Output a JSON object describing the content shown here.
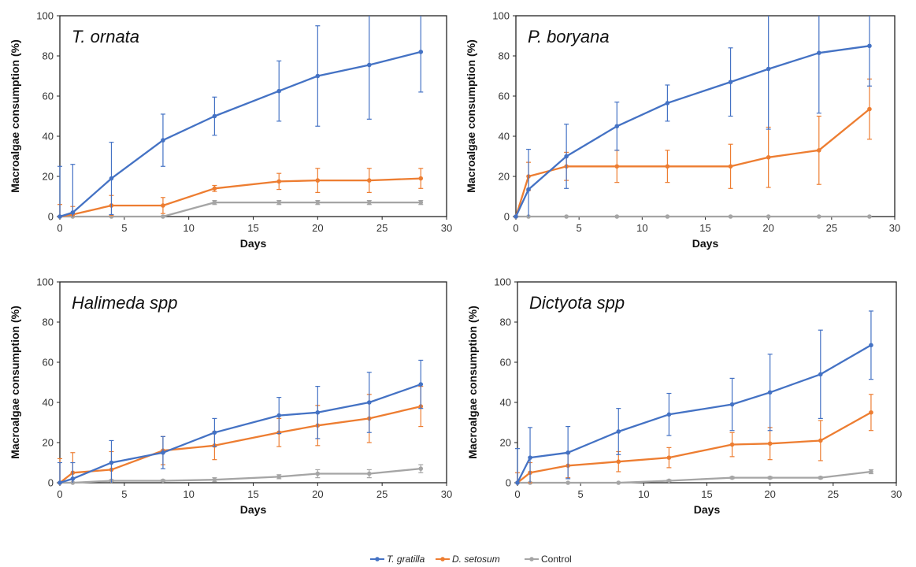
{
  "legend": {
    "placement": "bottom-center",
    "entries": [
      {
        "label": "T. gratilla",
        "color": "#4472C4",
        "italic": true
      },
      {
        "label": "D. setosum",
        "color": "#ED7D31",
        "italic": true
      },
      {
        "label": "Control",
        "color": "#A5A5A5",
        "italic": false
      }
    ]
  },
  "chart_data": [
    {
      "type": "line",
      "title": "T. ornata",
      "xlabel": "Days",
      "ylabel": "Macroalgae consumption (%)",
      "xlim": [
        0,
        30
      ],
      "ylim": [
        0,
        100
      ],
      "xticks": [
        0,
        5,
        10,
        15,
        20,
        25,
        30
      ],
      "yticks": [
        0,
        20,
        40,
        60,
        80,
        100
      ],
      "grid": false,
      "x": [
        0,
        1,
        4,
        8,
        12,
        17,
        20,
        24,
        28
      ],
      "series": [
        {
          "name": "T. gratilla",
          "color": "#4472C4",
          "values": [
            0,
            2,
            19,
            38,
            50,
            62.5,
            70,
            75.5,
            82
          ],
          "errors": [
            25,
            24,
            18,
            13,
            9.5,
            15,
            25,
            27,
            20
          ]
        },
        {
          "name": "D. setosum",
          "color": "#ED7D31",
          "values": [
            0,
            1,
            5.5,
            5.5,
            14,
            17.5,
            18,
            18,
            19
          ],
          "errors": [
            6,
            4,
            5,
            4,
            1.5,
            4,
            6,
            6,
            5
          ]
        },
        {
          "name": "Control",
          "color": "#A5A5A5",
          "values": [
            0,
            0,
            0,
            0,
            7,
            7,
            7,
            7,
            7
          ],
          "errors": [
            0,
            0,
            0,
            0,
            1,
            1,
            1,
            1,
            1
          ]
        }
      ]
    },
    {
      "type": "line",
      "title": "P. boryana",
      "xlabel": "Days",
      "ylabel": "Macroalgae consumption (%)",
      "xlim": [
        0,
        30
      ],
      "ylim": [
        0,
        100
      ],
      "xticks": [
        0,
        5,
        10,
        15,
        20,
        25,
        30
      ],
      "yticks": [
        0,
        20,
        40,
        60,
        80,
        100
      ],
      "grid": false,
      "x": [
        0,
        1,
        4,
        8,
        12,
        17,
        20,
        24,
        28
      ],
      "series": [
        {
          "name": "T. gratilla",
          "color": "#4472C4",
          "values": [
            0,
            13.5,
            30,
            45,
            56.5,
            67,
            73.5,
            81.5,
            85
          ],
          "errors": [
            0,
            20,
            16,
            12,
            9,
            17,
            30,
            30,
            20
          ]
        },
        {
          "name": "D. setosum",
          "color": "#ED7D31",
          "values": [
            0,
            20,
            25,
            25,
            25,
            25,
            29.5,
            33,
            53.5
          ],
          "errors": [
            0,
            7,
            7,
            8,
            8,
            11,
            15,
            17,
            15
          ]
        },
        {
          "name": "Control",
          "color": "#A5A5A5",
          "values": [
            0,
            0,
            0,
            0,
            0,
            0,
            0,
            0,
            0
          ],
          "errors": [
            0,
            0,
            0,
            0,
            0,
            0,
            0,
            0,
            0
          ]
        }
      ]
    },
    {
      "type": "line",
      "title": "Halimeda spp",
      "xlabel": "Days",
      "ylabel": "Macroalgae consumption (%)",
      "xlim": [
        0,
        30
      ],
      "ylim": [
        0,
        100
      ],
      "xticks": [
        0,
        5,
        10,
        15,
        20,
        25,
        30
      ],
      "yticks": [
        0,
        20,
        40,
        60,
        80,
        100
      ],
      "grid": false,
      "x": [
        0,
        1,
        4,
        8,
        12,
        17,
        20,
        24,
        28
      ],
      "series": [
        {
          "name": "T. gratilla",
          "color": "#4472C4",
          "values": [
            0,
            2,
            10,
            15,
            25,
            33.5,
            35,
            40,
            49
          ],
          "errors": [
            10,
            8,
            11,
            8,
            7,
            9,
            13,
            15,
            12
          ]
        },
        {
          "name": "D. setosum",
          "color": "#ED7D31",
          "values": [
            0,
            5,
            6.5,
            16,
            18.5,
            25,
            28.5,
            32,
            38
          ],
          "errors": [
            12,
            10,
            9,
            7,
            7,
            7,
            10,
            12,
            10
          ]
        },
        {
          "name": "Control",
          "color": "#A5A5A5",
          "values": [
            0,
            0,
            1,
            1,
            1.5,
            3,
            4.5,
            4.5,
            7
          ],
          "errors": [
            0,
            0,
            0.5,
            0.5,
            1,
            1,
            2,
            2,
            2
          ]
        }
      ]
    },
    {
      "type": "line",
      "title": "Dictyota spp",
      "xlabel": "Days",
      "ylabel": "Macroalgae consumption (%)",
      "xlim": [
        0,
        30
      ],
      "ylim": [
        0,
        100
      ],
      "xticks": [
        0,
        5,
        10,
        15,
        20,
        25,
        30
      ],
      "yticks": [
        0,
        20,
        40,
        60,
        80,
        100
      ],
      "grid": false,
      "x": [
        0,
        1,
        4,
        8,
        12,
        17,
        20,
        24,
        28
      ],
      "series": [
        {
          "name": "T. gratilla",
          "color": "#4472C4",
          "values": [
            0,
            12.5,
            15,
            25.5,
            34,
            39,
            45,
            54,
            68.5
          ],
          "errors": [
            17,
            15,
            13,
            11.5,
            10.5,
            13,
            19,
            22,
            17
          ]
        },
        {
          "name": "D. setosum",
          "color": "#ED7D31",
          "values": [
            0,
            5,
            8.5,
            10.5,
            12.5,
            19,
            19.5,
            21,
            35
          ],
          "errors": [
            5,
            5,
            6,
            5,
            5,
            6,
            8,
            10,
            9
          ]
        },
        {
          "name": "Control",
          "color": "#A5A5A5",
          "values": [
            0,
            0,
            0,
            0,
            1,
            2.5,
            2.5,
            2.5,
            5.5
          ],
          "errors": [
            0,
            0,
            0,
            0,
            0.5,
            0.5,
            0.5,
            0.5,
            1
          ]
        }
      ]
    }
  ]
}
